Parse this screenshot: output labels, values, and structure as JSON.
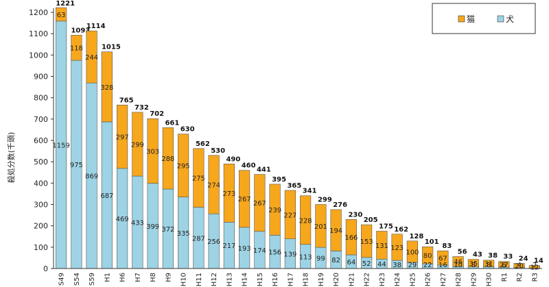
{
  "chart_data": {
    "type": "bar",
    "stacked": true,
    "ylabel": "殺処分数(千頭)",
    "ylim": [
      0,
      1200
    ],
    "ytick_step": 100,
    "grid": false,
    "legend_position": "top-right",
    "categories": [
      "S49",
      "S54",
      "S59",
      "H1",
      "H6",
      "H7",
      "H8",
      "H9",
      "H10",
      "H11",
      "H12",
      "H13",
      "H14",
      "H15",
      "H16",
      "H17",
      "H18",
      "H19",
      "H20",
      "H21",
      "H22",
      "H23",
      "H24",
      "H25",
      "H26",
      "H27",
      "H28",
      "H29",
      "H30",
      "R1",
      "R2",
      "R3"
    ],
    "series": [
      {
        "name": "犬",
        "color": "#9dd3e4",
        "values": [
          1159,
          975,
          869,
          687,
          469,
          433,
          399,
          372,
          335,
          287,
          256,
          217,
          193,
          174,
          156,
          139,
          113,
          99,
          82,
          64,
          52,
          44,
          38,
          29,
          22,
          16,
          10,
          8,
          8,
          6,
          4,
          2
        ]
      },
      {
        "name": "猫",
        "color": "#f7a71c",
        "values": [
          63,
          118,
          244,
          328,
          297,
          299,
          303,
          288,
          295,
          275,
          274,
          273,
          267,
          267,
          239,
          227,
          228,
          201,
          194,
          166,
          153,
          131,
          123,
          100,
          80,
          67,
          46,
          35,
          31,
          27,
          20,
          12
        ]
      }
    ],
    "totals": [
      1221,
      1093,
      1114,
      1015,
      765,
      732,
      702,
      661,
      630,
      562,
      530,
      490,
      460,
      441,
      395,
      365,
      341,
      299,
      276,
      230,
      205,
      175,
      162,
      128,
      101,
      83,
      56,
      43,
      38,
      33,
      24,
      14
    ]
  }
}
